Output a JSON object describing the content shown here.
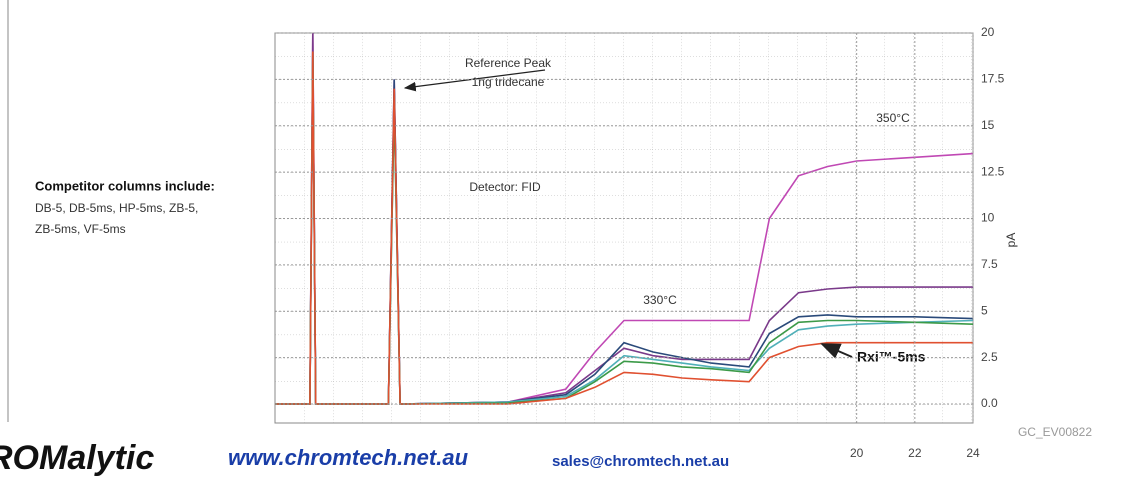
{
  "side_note": {
    "heading": "Competitor columns include:",
    "lines": [
      "DB-5, DB-5ms, HP-5ms, ZB-5,",
      "ZB-5ms, VF-5ms"
    ]
  },
  "figure_code": "GC_EV00822",
  "footer": {
    "brand": "ROMalytic",
    "website": "www.chromtech.net.au",
    "email": "sales@chromtech.net.au"
  },
  "chart_data": {
    "type": "line",
    "y_label": "pA",
    "annotations": [
      "Reference Peak",
      "1ng tridecane",
      "Detector: FID",
      "350°C",
      "330°C",
      "Rxi™-5ms"
    ],
    "x": [
      0,
      1.2,
      1.3,
      1.4,
      3.9,
      4.1,
      4.3,
      8,
      10,
      11,
      12,
      13,
      14,
      15,
      16.3,
      17,
      18,
      19,
      20,
      22,
      24
    ],
    "series": [
      {
        "color": "#c048b4",
        "values": [
          0,
          0,
          20,
          0,
          0,
          17.5,
          0,
          0.1,
          0.8,
          2.8,
          4.5,
          4.5,
          4.5,
          4.5,
          4.5,
          10,
          12.3,
          12.8,
          13.1,
          13.3,
          13.5
        ]
      },
      {
        "color": "#7a3a8a",
        "values": [
          0,
          0,
          20,
          0,
          0,
          17,
          0,
          0.1,
          0.6,
          1.8,
          3.0,
          2.6,
          2.4,
          2.4,
          2.4,
          4.5,
          6.0,
          6.2,
          6.3,
          6.3,
          6.3
        ]
      },
      {
        "color": "#2a4a7a",
        "values": [
          0,
          0,
          18,
          0,
          0,
          17.5,
          0,
          0.1,
          0.5,
          1.6,
          3.3,
          2.8,
          2.5,
          2.2,
          2.0,
          3.8,
          4.7,
          4.8,
          4.7,
          4.7,
          4.6
        ]
      },
      {
        "color": "#50b0b8",
        "values": [
          0,
          0,
          19,
          0,
          0,
          16,
          0,
          0.1,
          0.4,
          1.3,
          2.6,
          2.4,
          2.2,
          2.0,
          1.8,
          3.0,
          4.0,
          4.2,
          4.3,
          4.4,
          4.5
        ]
      },
      {
        "color": "#3c9a48",
        "values": [
          0,
          0,
          19,
          0,
          0,
          16,
          0,
          0.05,
          0.3,
          1.2,
          2.3,
          2.2,
          2.0,
          1.9,
          1.7,
          3.3,
          4.4,
          4.5,
          4.5,
          4.4,
          4.3
        ]
      },
      {
        "color": "#e05030",
        "values": [
          0,
          0,
          19,
          0,
          0,
          17,
          0,
          0,
          0.3,
          0.9,
          1.7,
          1.6,
          1.4,
          1.3,
          1.2,
          2.5,
          3.1,
          3.3,
          3.3,
          3.3,
          3.3
        ]
      }
    ],
    "xlim": [
      0,
      24
    ],
    "xticks": [
      20,
      22,
      24
    ],
    "ylim": [
      -1,
      20
    ],
    "yticks": [
      20,
      17.5,
      15,
      12.5,
      10,
      7.5,
      5,
      2.5,
      {
        "value": 0,
        "label": "0.0"
      }
    ],
    "grid": true
  }
}
